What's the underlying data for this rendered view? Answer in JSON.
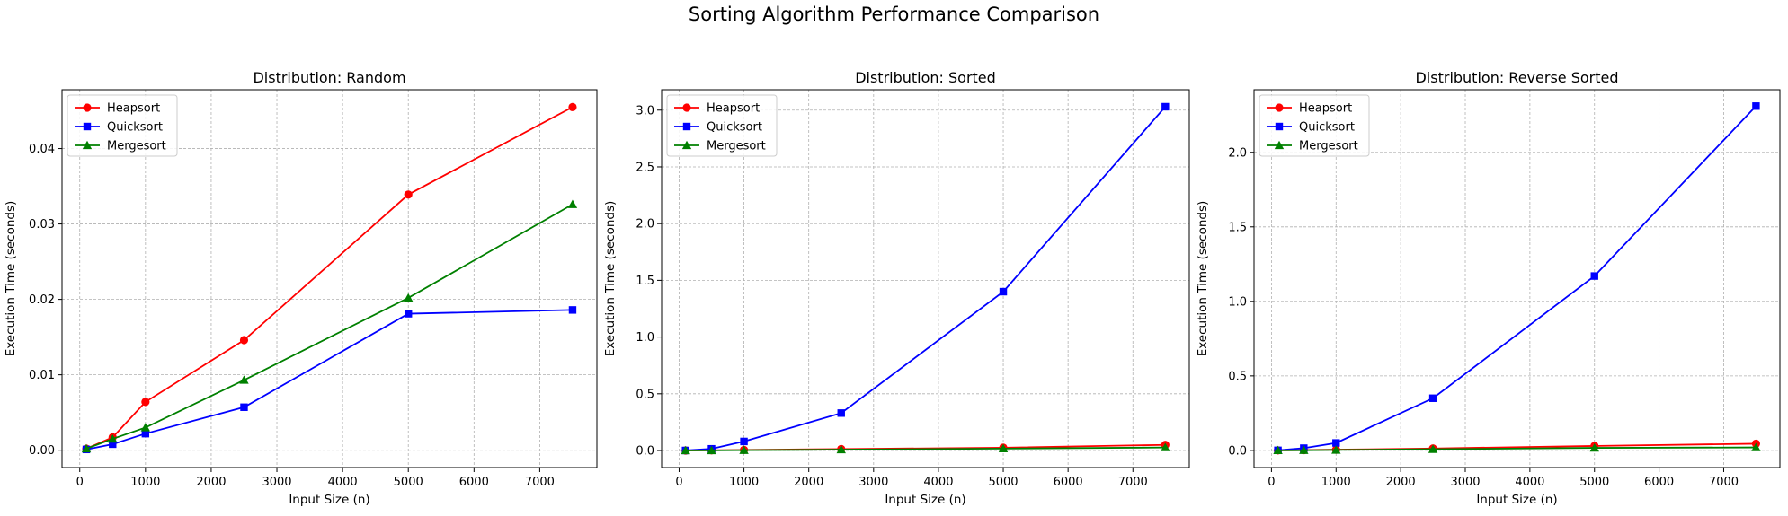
{
  "figure": {
    "title": "Sorting Algorithm Performance Comparison"
  },
  "chart_data": [
    {
      "type": "line",
      "title": "Distribution: Random",
      "xlabel": "Input Size (n)",
      "ylabel": "Execution Time (seconds)",
      "x": [
        100,
        500,
        1000,
        2500,
        5000,
        7500
      ],
      "xlim": [
        -270,
        7870
      ],
      "ylim": [
        -0.0023,
        0.0478
      ],
      "xticks": [
        0,
        1000,
        2000,
        3000,
        4000,
        5000,
        6000,
        7000
      ],
      "yticks": [
        0.0,
        0.01,
        0.02,
        0.03,
        0.04
      ],
      "ytick_labels": [
        "0.00",
        "0.01",
        "0.02",
        "0.03",
        "0.04"
      ],
      "grid": true,
      "legend": "top-left",
      "series": [
        {
          "name": "Heapsort",
          "color": "#ff0000",
          "marker": "circle",
          "values": [
            0.0002,
            0.0017,
            0.0064,
            0.0146,
            0.0339,
            0.0455
          ]
        },
        {
          "name": "Quicksort",
          "color": "#0000ff",
          "marker": "square",
          "values": [
            0.0001,
            0.0008,
            0.0022,
            0.0057,
            0.0181,
            0.0186
          ]
        },
        {
          "name": "Mergesort",
          "color": "#008000",
          "marker": "triangle",
          "values": [
            0.0002,
            0.0015,
            0.003,
            0.0093,
            0.0202,
            0.0326
          ]
        }
      ]
    },
    {
      "type": "line",
      "title": "Distribution: Sorted",
      "xlabel": "Input Size (n)",
      "ylabel": "Execution Time (seconds)",
      "x": [
        100,
        500,
        1000,
        2500,
        5000,
        7500
      ],
      "xlim": [
        -270,
        7870
      ],
      "ylim": [
        -0.15,
        3.18
      ],
      "xticks": [
        0,
        1000,
        2000,
        3000,
        4000,
        5000,
        6000,
        7000
      ],
      "yticks": [
        0.0,
        0.5,
        1.0,
        1.5,
        2.0,
        2.5,
        3.0
      ],
      "ytick_labels": [
        "0.0",
        "0.5",
        "1.0",
        "1.5",
        "2.0",
        "2.5",
        "3.0"
      ],
      "grid": true,
      "legend": "top-left",
      "series": [
        {
          "name": "Heapsort",
          "color": "#ff0000",
          "marker": "circle",
          "values": [
            0.0002,
            0.002,
            0.005,
            0.013,
            0.025,
            0.05
          ]
        },
        {
          "name": "Quicksort",
          "color": "#0000ff",
          "marker": "square",
          "values": [
            0.0006,
            0.015,
            0.08,
            0.33,
            1.4,
            3.03
          ]
        },
        {
          "name": "Mergesort",
          "color": "#008000",
          "marker": "triangle",
          "values": [
            0.0002,
            0.001,
            0.003,
            0.008,
            0.017,
            0.027
          ]
        }
      ]
    },
    {
      "type": "line",
      "title": "Distribution: Reverse Sorted",
      "xlabel": "Input Size (n)",
      "ylabel": "Execution Time (seconds)",
      "x": [
        100,
        500,
        1000,
        2500,
        5000,
        7500
      ],
      "xlim": [
        -270,
        7870
      ],
      "ylim": [
        -0.115,
        2.42
      ],
      "xticks": [
        0,
        1000,
        2000,
        3000,
        4000,
        5000,
        6000,
        7000
      ],
      "yticks": [
        0.0,
        0.5,
        1.0,
        1.5,
        2.0
      ],
      "ytick_labels": [
        "0.0",
        "0.5",
        "1.0",
        "1.5",
        "2.0"
      ],
      "grid": true,
      "legend": "top-left",
      "series": [
        {
          "name": "Heapsort",
          "color": "#ff0000",
          "marker": "circle",
          "values": [
            0.0002,
            0.002,
            0.005,
            0.013,
            0.03,
            0.045
          ]
        },
        {
          "name": "Quicksort",
          "color": "#0000ff",
          "marker": "square",
          "values": [
            0.0005,
            0.015,
            0.05,
            0.35,
            1.17,
            2.31
          ]
        },
        {
          "name": "Mergesort",
          "color": "#008000",
          "marker": "triangle",
          "values": [
            0.0002,
            0.001,
            0.003,
            0.008,
            0.017,
            0.02
          ]
        }
      ]
    }
  ]
}
